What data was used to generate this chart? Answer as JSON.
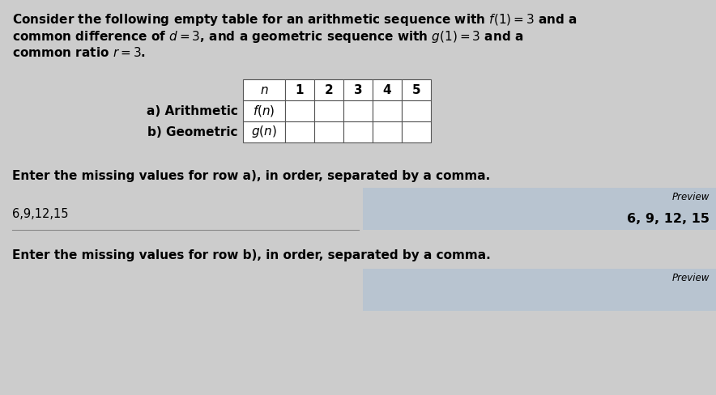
{
  "bg_color": "#cccccc",
  "text_color": "#000000",
  "title_lines": [
    "Consider the following empty table for an arithmetic sequence with $f(1) = 3$ and a",
    "common difference of $d = 3$, and a geometric sequence with $g(1) = 3$ and a",
    "common ratio $r = 3$."
  ],
  "table_col_labels": [
    "$n$",
    "1",
    "2",
    "3",
    "4",
    "5"
  ],
  "table_row_a_label": "a) Arithmetic",
  "table_row_a_fn": "$f(n)$",
  "table_row_b_label": "b) Geometric",
  "table_row_b_fn": "$g(n)$",
  "prompt_a": "Enter the missing values for row a), in order, separated by a comma.",
  "input_a_text": "6,9,12,15",
  "preview_label": "Preview",
  "preview_a_text": "6, 9, 12, 15",
  "prompt_b": "Enter the missing values for row b), in order, separated by a comma.",
  "preview_b_label": "Preview",
  "preview_box_color": "#b8c4d0",
  "font_size_title": 11.0,
  "font_size_table": 11.0,
  "font_size_prompt": 11.0,
  "font_size_input": 10.5,
  "font_size_preview_label": 8.5,
  "font_size_preview_val": 11.5
}
